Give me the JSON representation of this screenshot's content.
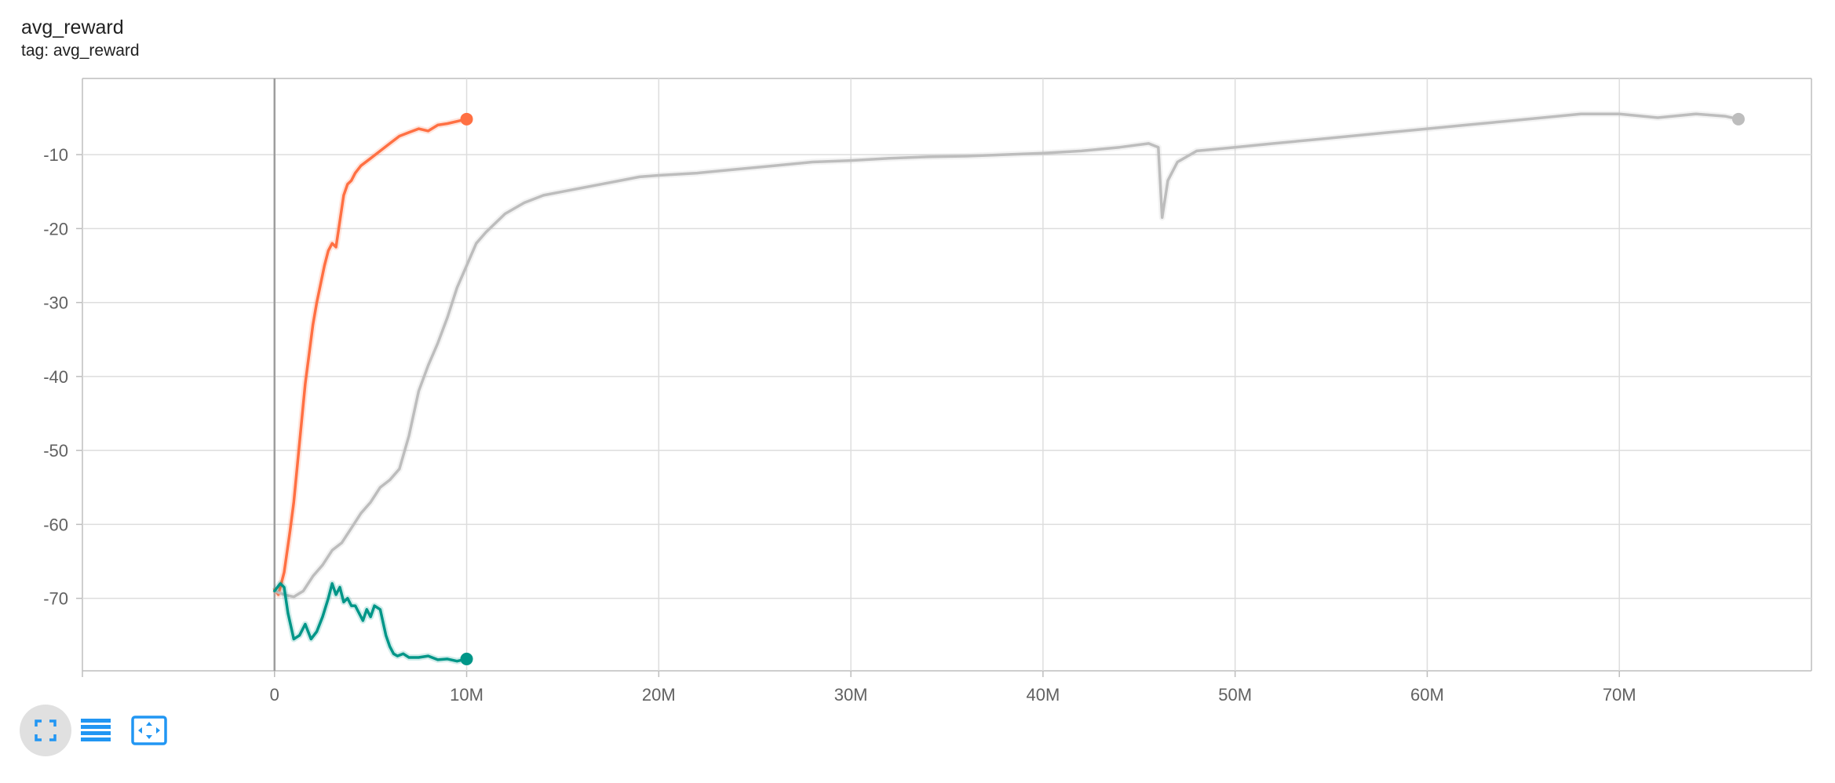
{
  "card": {
    "title": "avg_reward",
    "subtitle": "tag: avg_reward"
  },
  "toolbar": {
    "buttons": [
      {
        "icon": "fullscreen-icon",
        "active": true
      },
      {
        "icon": "list-icon",
        "active": false
      },
      {
        "icon": "fit-domain-icon",
        "active": false
      }
    ],
    "accent": "#2196f3"
  },
  "chart_data": {
    "type": "line",
    "title": "avg_reward",
    "xlabel": "",
    "ylabel": "",
    "xlim": [
      -10000000,
      80000000
    ],
    "ylim": [
      -79.8,
      0.3
    ],
    "grid": true,
    "xticks": [
      0,
      10000000,
      20000000,
      30000000,
      40000000,
      50000000,
      60000000,
      70000000
    ],
    "xtick_labels": [
      "0",
      "10M",
      "20M",
      "30M",
      "40M",
      "50M",
      "60M",
      "70M"
    ],
    "yticks": [
      -10,
      -20,
      -30,
      -40,
      -50,
      -60,
      -70
    ],
    "ytick_labels": [
      "-10",
      "-20",
      "-30",
      "-40",
      "-50",
      "-60",
      "-70"
    ],
    "series": [
      {
        "color": "#ff7043",
        "x": [
          0,
          200000,
          500000,
          800000,
          1000000,
          1300000,
          1600000,
          1800000,
          2000000,
          2200000,
          2400000,
          2600000,
          2800000,
          3000000,
          3200000,
          3400000,
          3600000,
          3800000,
          4000000,
          4200000,
          4500000,
          5000000,
          5500000,
          6000000,
          6500000,
          7000000,
          7500000,
          8000000,
          8500000,
          9000000,
          9500000,
          10000000
        ],
        "y": [
          -68.8,
          -69.5,
          -66.5,
          -61.0,
          -57.0,
          -49.0,
          -41.0,
          -37.0,
          -33.0,
          -30.0,
          -27.5,
          -25.0,
          -23.0,
          -22.0,
          -22.5,
          -19.0,
          -15.5,
          -14.0,
          -13.5,
          -12.5,
          -11.5,
          -10.5,
          -9.5,
          -8.5,
          -7.5,
          -7.0,
          -6.5,
          -6.8,
          -6.0,
          -5.8,
          -5.5,
          -5.2
        ]
      },
      {
        "color": "#bdbdbd",
        "x": [
          0,
          500000,
          1000000,
          1500000,
          2000000,
          2500000,
          3000000,
          3500000,
          4000000,
          4500000,
          5000000,
          5500000,
          6000000,
          6500000,
          7000000,
          7500000,
          8000000,
          8500000,
          9000000,
          9500000,
          10000000,
          10500000,
          11000000,
          12000000,
          13000000,
          14000000,
          15000000,
          16000000,
          17000000,
          18000000,
          19000000,
          20000000,
          22000000,
          24000000,
          26000000,
          28000000,
          30000000,
          32000000,
          34000000,
          36000000,
          38000000,
          40000000,
          42000000,
          44000000,
          45500000,
          46000000,
          46200000,
          46500000,
          47000000,
          48000000,
          50000000,
          52000000,
          54000000,
          56000000,
          58000000,
          60000000,
          62000000,
          64000000,
          66000000,
          68000000,
          70000000,
          72000000,
          74000000,
          75500000,
          76200000
        ],
        "y": [
          -69.0,
          -69.5,
          -69.8,
          -69.0,
          -67.0,
          -65.5,
          -63.5,
          -62.5,
          -60.5,
          -58.5,
          -57.0,
          -55.0,
          -54.0,
          -52.5,
          -48.0,
          -42.0,
          -38.5,
          -35.5,
          -32.0,
          -28.0,
          -25.0,
          -22.0,
          -20.5,
          -18.0,
          -16.5,
          -15.5,
          -15.0,
          -14.5,
          -14.0,
          -13.5,
          -13.0,
          -12.8,
          -12.5,
          -12.0,
          -11.5,
          -11.0,
          -10.8,
          -10.5,
          -10.3,
          -10.2,
          -10.0,
          -9.8,
          -9.5,
          -9.0,
          -8.5,
          -9.0,
          -18.5,
          -13.5,
          -11.0,
          -9.5,
          -9.0,
          -8.5,
          -8.0,
          -7.5,
          -7.0,
          -6.5,
          -6.0,
          -5.5,
          -5.0,
          -4.5,
          -4.5,
          -5.0,
          -4.5,
          -4.8,
          -5.2
        ]
      },
      {
        "color": "#009688",
        "x": [
          0,
          300000,
          500000,
          700000,
          1000000,
          1300000,
          1600000,
          1900000,
          2200000,
          2500000,
          2800000,
          3000000,
          3200000,
          3400000,
          3600000,
          3800000,
          4000000,
          4200000,
          4400000,
          4600000,
          4800000,
          5000000,
          5200000,
          5500000,
          5800000,
          6000000,
          6200000,
          6400000,
          6700000,
          7000000,
          7500000,
          8000000,
          8500000,
          9000000,
          9500000,
          10000000
        ],
        "y": [
          -69.0,
          -68.0,
          -68.5,
          -72.0,
          -75.5,
          -75.0,
          -73.5,
          -75.5,
          -74.5,
          -72.5,
          -70.0,
          -68.0,
          -69.5,
          -68.5,
          -70.5,
          -70.0,
          -71.0,
          -71.0,
          -72.0,
          -73.0,
          -71.5,
          -72.5,
          -71.0,
          -71.5,
          -75.0,
          -76.5,
          -77.5,
          -77.8,
          -77.5,
          -78.0,
          -78.0,
          -77.8,
          -78.3,
          -78.2,
          -78.5,
          -78.2
        ]
      }
    ]
  }
}
